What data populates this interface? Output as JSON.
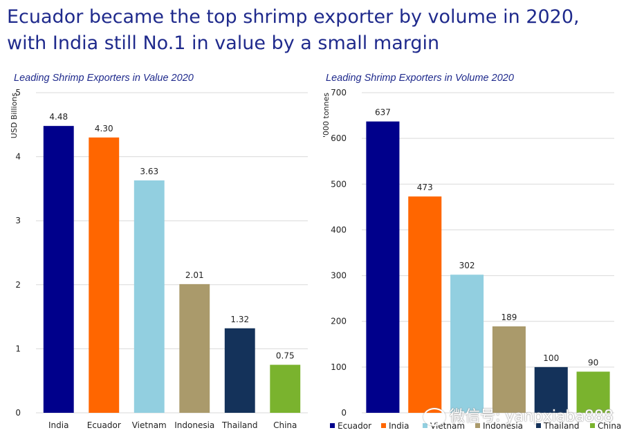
{
  "headline": "Ecuador became the top shrimp exporter by volume in 2020, with India still No.1 in value by a small margin",
  "watermark": "微信号: yanpxiaba888",
  "chart_data": [
    {
      "type": "bar",
      "title": "Leading Shrimp Exporters in Value 2020",
      "ylabel": "USD Billions",
      "xlabel": "",
      "ylim": [
        0,
        5
      ],
      "yticks": [
        0,
        1,
        2,
        3,
        4,
        5
      ],
      "grid": true,
      "legend": "none",
      "categories": [
        "India",
        "Ecuador",
        "Vietnam",
        "Indonesia",
        "Thailand",
        "China"
      ],
      "values": [
        4.48,
        4.3,
        3.63,
        2.01,
        1.32,
        0.75
      ],
      "value_labels": [
        "4.48",
        "4.30",
        "3.63",
        "2.01",
        "1.32",
        "0.75"
      ],
      "colors": [
        "#00008b",
        "#ff6600",
        "#92cfe0",
        "#aa9a6b",
        "#14325a",
        "#7ab32e"
      ]
    },
    {
      "type": "bar",
      "title": "Leading Shrimp Exporters in Volume 2020",
      "ylabel": "'000 tonnes",
      "xlabel": "",
      "ylim": [
        0,
        700
      ],
      "yticks": [
        0,
        100,
        200,
        300,
        400,
        500,
        600,
        700
      ],
      "grid": true,
      "legend": "bottom",
      "categories": [
        "Ecuador",
        "India",
        "Vietnam",
        "Indonesia",
        "Thailand",
        "China"
      ],
      "values": [
        637,
        473,
        302,
        189,
        100,
        90
      ],
      "value_labels": [
        "637",
        "473",
        "302",
        "189",
        "100",
        "90"
      ],
      "colors": [
        "#00008b",
        "#ff6600",
        "#92cfe0",
        "#aa9a6b",
        "#14325a",
        "#7ab32e"
      ]
    }
  ]
}
